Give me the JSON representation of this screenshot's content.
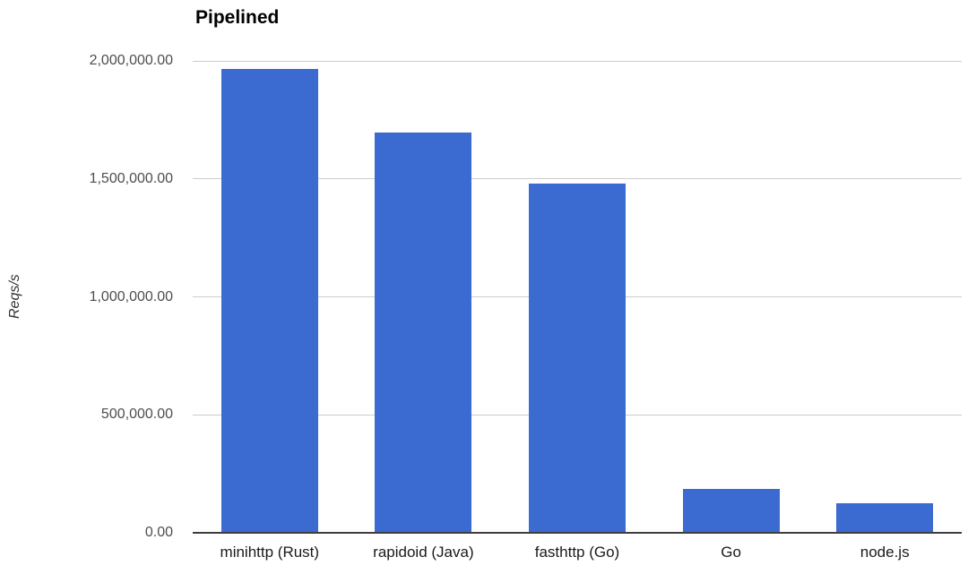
{
  "chart_data": {
    "type": "bar",
    "title": "Pipelined",
    "ylabel": "Reqs/s",
    "xlabel": "",
    "categories": [
      "minihttp (Rust)",
      "rapidoid (Java)",
      "fasthttp (Go)",
      "Go",
      "node.js"
    ],
    "values": [
      1965000,
      1695000,
      1480000,
      185000,
      125000
    ],
    "ylim": [
      0,
      2000000
    ],
    "yticks": [
      {
        "value": 0,
        "label": "0.00"
      },
      {
        "value": 500000,
        "label": "500,000.00"
      },
      {
        "value": 1000000,
        "label": "1,000,000.00"
      },
      {
        "value": 1500000,
        "label": "1,500,000.00"
      },
      {
        "value": 2000000,
        "label": "2,000,000.00"
      }
    ],
    "grid": true,
    "legend": "none",
    "colors": {
      "bar": "#3b6ad1",
      "gridline": "#cccccc",
      "axis_line": "#3d3d3d",
      "title_text": "#000000",
      "tick_text": "#4d4d4d",
      "category_text": "#1a1a1a",
      "background": "#ffffff"
    }
  }
}
